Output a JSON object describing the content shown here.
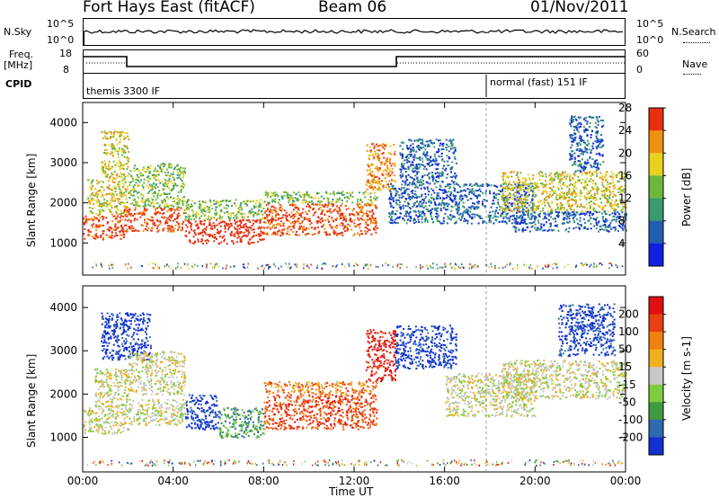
{
  "header": {
    "radar": "Fort Hays East (fitACF)",
    "beam": "Beam 06",
    "date": "01/Nov/2011"
  },
  "top_panels": {
    "nsky_label": "N.Sky",
    "nsky_ticks": [
      "10^5",
      "10^0"
    ],
    "nsearch_label": "N.Search",
    "nsearch_ticks": [
      "10^5",
      "10^0"
    ],
    "freq_label_1": "Freq.",
    "freq_label_2": "[MHz]",
    "freq_ticks": [
      "18",
      "8"
    ],
    "nave_label": "Nave",
    "nave_ticks": [
      "60",
      "0"
    ],
    "cpid_label": "CPID",
    "cpid_modes": [
      "themis 3300 IF",
      "normal (fast) 151 IF"
    ]
  },
  "chart_data": [
    {
      "type": "heatmap",
      "title": "",
      "ylabel": "Slant Range [km]",
      "xlabel": "Time UT",
      "x_ticks": [
        "00:00",
        "04:00",
        "08:00",
        "12:00",
        "16:00",
        "20:00",
        "00:00"
      ],
      "y_ticks": [
        "1000",
        "2000",
        "3000",
        "4000"
      ],
      "ylim": [
        200,
        4500
      ],
      "colorbar_label": "Power [dB]",
      "colorbar_ticks": [
        "4",
        "8",
        "12",
        "16",
        "20",
        "24",
        "28"
      ],
      "colorbar_colors": [
        "#1020e0",
        "#2060b0",
        "#3a9a70",
        "#6cb83a",
        "#e8d020",
        "#f09010",
        "#e83010"
      ],
      "regions": [
        {
          "t0": 0.0,
          "t1": 1.8,
          "r0": 1100,
          "r1": 1700,
          "level": 6
        },
        {
          "t0": 0.2,
          "t1": 2.0,
          "r0": 1700,
          "r1": 2600,
          "level": 4
        },
        {
          "t0": 0.8,
          "t1": 2.0,
          "r0": 2600,
          "r1": 3800,
          "level": 4
        },
        {
          "t0": 1.8,
          "t1": 4.5,
          "r0": 1300,
          "r1": 1900,
          "level": 6
        },
        {
          "t0": 2.0,
          "t1": 4.5,
          "r0": 1900,
          "r1": 3000,
          "level": 3
        },
        {
          "t0": 4.5,
          "t1": 8.0,
          "r0": 1000,
          "r1": 1600,
          "level": 7
        },
        {
          "t0": 4.5,
          "t1": 8.0,
          "r0": 1600,
          "r1": 2100,
          "level": 3
        },
        {
          "t0": 8.0,
          "t1": 13.0,
          "r0": 1200,
          "r1": 2000,
          "level": 6
        },
        {
          "t0": 8.0,
          "t1": 13.0,
          "r0": 2000,
          "r1": 2300,
          "level": 3
        },
        {
          "t0": 12.5,
          "t1": 13.8,
          "r0": 2300,
          "r1": 3500,
          "level": 5
        },
        {
          "t0": 13.5,
          "t1": 20.0,
          "r0": 1500,
          "r1": 2500,
          "level": 1
        },
        {
          "t0": 14.0,
          "t1": 16.5,
          "r0": 2500,
          "r1": 3600,
          "level": 1
        },
        {
          "t0": 18.5,
          "t1": 24.0,
          "r0": 1800,
          "r1": 2800,
          "level": 4
        },
        {
          "t0": 19.0,
          "t1": 24.0,
          "r0": 1300,
          "r1": 1800,
          "level": 1
        },
        {
          "t0": 21.5,
          "t1": 23.0,
          "r0": 2800,
          "r1": 4200,
          "level": 1
        }
      ]
    },
    {
      "type": "heatmap",
      "title": "",
      "ylabel": "Slant Range [km]",
      "xlabel": "Time UT",
      "x_ticks": [
        "00:00",
        "04:00",
        "08:00",
        "12:00",
        "16:00",
        "20:00",
        "00:00"
      ],
      "y_ticks": [
        "1000",
        "2000",
        "3000",
        "4000"
      ],
      "ylim": [
        200,
        4500
      ],
      "colorbar_label": "Velocity [m s-1]",
      "colorbar_ticks": [
        "200",
        "100",
        "50",
        "15",
        "-15",
        "-50",
        "-100",
        "-200"
      ],
      "colorbar_colors": [
        "#1030d0",
        "#2f6ab0",
        "#3f9a40",
        "#7fcc40",
        "#c8c8c8",
        "#f0b020",
        "#f08010",
        "#e84010",
        "#e01010"
      ],
      "regions": [
        {
          "t0": 0.0,
          "t1": 2.0,
          "r0": 1100,
          "r1": 1700,
          "level": 4
        },
        {
          "t0": 0.5,
          "t1": 2.0,
          "r0": 1700,
          "r1": 2600,
          "level": 4
        },
        {
          "t0": 0.8,
          "t1": 3.0,
          "r0": 2800,
          "r1": 3900,
          "level": 0
        },
        {
          "t0": 2.0,
          "t1": 4.5,
          "r0": 1300,
          "r1": 1900,
          "level": 4
        },
        {
          "t0": 2.0,
          "t1": 4.5,
          "r0": 2000,
          "r1": 3000,
          "level": 4
        },
        {
          "t0": 4.5,
          "t1": 6.0,
          "r0": 1200,
          "r1": 2000,
          "level": 0
        },
        {
          "t0": 6.0,
          "t1": 8.0,
          "r0": 1000,
          "r1": 1700,
          "level": 2
        },
        {
          "t0": 8.0,
          "t1": 13.0,
          "r0": 1200,
          "r1": 2000,
          "level": 7
        },
        {
          "t0": 8.0,
          "t1": 13.0,
          "r0": 2000,
          "r1": 2300,
          "level": 6
        },
        {
          "t0": 12.5,
          "t1": 13.8,
          "r0": 2300,
          "r1": 3500,
          "level": 8
        },
        {
          "t0": 13.8,
          "t1": 16.5,
          "r0": 2600,
          "r1": 3600,
          "level": 0
        },
        {
          "t0": 16.0,
          "t1": 20.0,
          "r0": 1500,
          "r1": 2500,
          "level": 4
        },
        {
          "t0": 18.5,
          "t1": 24.0,
          "r0": 1900,
          "r1": 2800,
          "level": 4
        },
        {
          "t0": 21.0,
          "t1": 23.5,
          "r0": 2900,
          "r1": 4100,
          "level": 0
        }
      ]
    }
  ],
  "colorbar_labels": {
    "power": "Power [dB]",
    "velocity": "Velocity [m s-1]"
  },
  "xaxis": {
    "label": "Time UT"
  }
}
